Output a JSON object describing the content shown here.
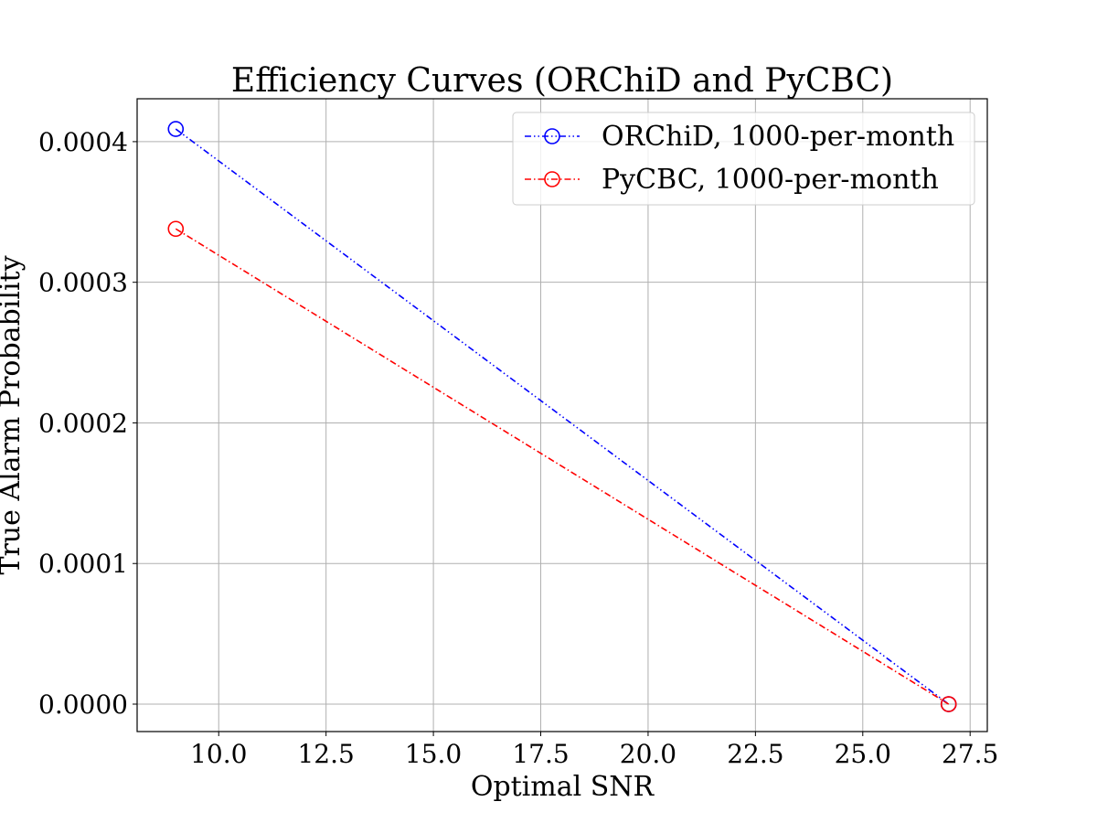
{
  "chart_data": {
    "type": "line",
    "title": "Efficiency Curves (ORChiD and PyCBC)",
    "xlabel": "Optimal SNR",
    "ylabel": "True Alarm Probability",
    "xlim": [
      8.1,
      27.9
    ],
    "ylim": [
      -1.95e-05,
      0.0004305
    ],
    "xticks": [
      "10.0",
      "12.5",
      "15.0",
      "17.5",
      "20.0",
      "22.5",
      "25.0",
      "27.5"
    ],
    "xtick_values": [
      10.0,
      12.5,
      15.0,
      17.5,
      20.0,
      22.5,
      25.0,
      27.5
    ],
    "yticks": [
      "0.0000",
      "0.0001",
      "0.0002",
      "0.0003",
      "0.0004"
    ],
    "ytick_values": [
      0.0,
      0.0001,
      0.0002,
      0.0003,
      0.0004
    ],
    "grid": true,
    "legend_position": "upper right",
    "series": [
      {
        "name": "ORChiD, 1000-per-month",
        "color": "#0000ff",
        "marker": "open-circle",
        "line_style": "dash-dot-dot",
        "x": [
          9,
          27
        ],
        "y": [
          0.000409,
          0.0
        ]
      },
      {
        "name": "PyCBC, 1000-per-month",
        "color": "#ff0000",
        "marker": "open-circle",
        "line_style": "dash-dot",
        "x": [
          9,
          27
        ],
        "y": [
          0.000338,
          0.0
        ]
      }
    ]
  }
}
